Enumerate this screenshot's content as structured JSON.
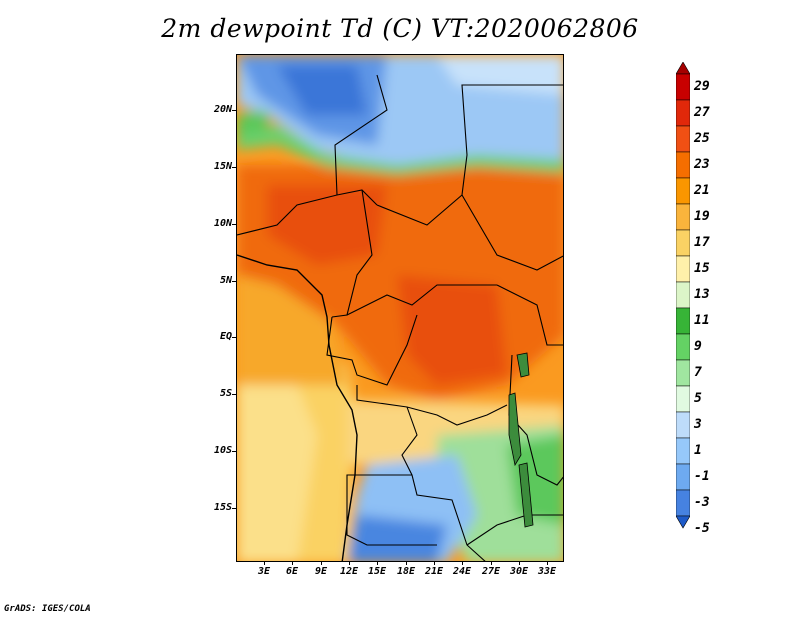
{
  "title": "2m dewpoint Td (C) VT:2020062806",
  "credit": "GrADS: IGES/COLA",
  "lat_labels": [
    "20N",
    "15N",
    "10N",
    "5N",
    "EQ",
    "5S",
    "10S",
    "15S"
  ],
  "lon_labels": [
    "3E",
    "6E",
    "9E",
    "12E",
    "15E",
    "18E",
    "21E",
    "24E",
    "27E",
    "30E",
    "33E"
  ],
  "colorbar": {
    "labels": [
      "29",
      "27",
      "25",
      "23",
      "21",
      "19",
      "17",
      "15",
      "13",
      "11",
      "9",
      "7",
      "5",
      "3",
      "1",
      "-1",
      "-3",
      "-5"
    ],
    "colors": [
      "#a50000",
      "#c80000",
      "#e1280a",
      "#f05014",
      "#f56e00",
      "#fa9600",
      "#fab43c",
      "#fad264",
      "#fff0aa",
      "#dcf5c8",
      "#37b437",
      "#64d264",
      "#a0e6a0",
      "#e1fae1",
      "#bedcfa",
      "#96c8fa",
      "#6eaaf0",
      "#4682e1",
      "#1e5ac8"
    ]
  }
}
